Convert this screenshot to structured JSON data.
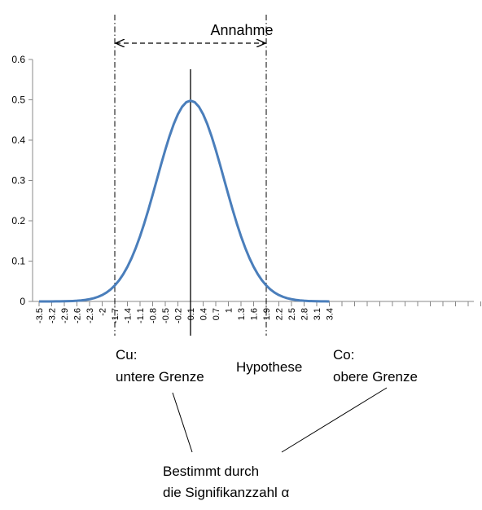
{
  "chart_data": {
    "type": "line",
    "title": "",
    "xlabel": "",
    "ylabel": "",
    "x_tick_labels": [
      "-3.5",
      "-3.2",
      "-2.9",
      "-2.6",
      "-2.3",
      "-2",
      "-1.7",
      "-1.4",
      "-1.1",
      "-0.8",
      "-0.5",
      "-0.2",
      "0.1",
      "0.4",
      "0.7",
      "1",
      "1.3",
      "1.6",
      "1.9",
      "2.2",
      "2.5",
      "2.8",
      "3.1",
      "3.4"
    ],
    "y_ticks": [
      0,
      0.1,
      0.2,
      0.3,
      0.4,
      0.5,
      0.6
    ],
    "y_tick_labels": [
      "0",
      "0.1",
      "0.2",
      "0.3",
      "0.4",
      "0.5",
      "0.6"
    ],
    "ylim": [
      0,
      0.6
    ],
    "series": [
      {
        "name": "",
        "color": "#4a7ebb",
        "mean": 0.1,
        "sd": 0.8,
        "peak": 0.498,
        "x_from": -3.5,
        "x_to": 3.4,
        "step": 0.1
      }
    ],
    "annotations": {
      "acceptance_label": "Annahme",
      "lower_boundary_x": -1.7,
      "upper_boundary_x": 1.9,
      "hypothesis_x": 0.1
    }
  },
  "labels": {
    "lower_title": "Cu:",
    "lower_sub": "untere Grenze",
    "hypothesis": "Hypothese",
    "upper_title": "Co:",
    "upper_sub": "obere Grenze",
    "note_line1": "Bestimmt durch",
    "note_line2": "die Signifikanzzahl α"
  }
}
